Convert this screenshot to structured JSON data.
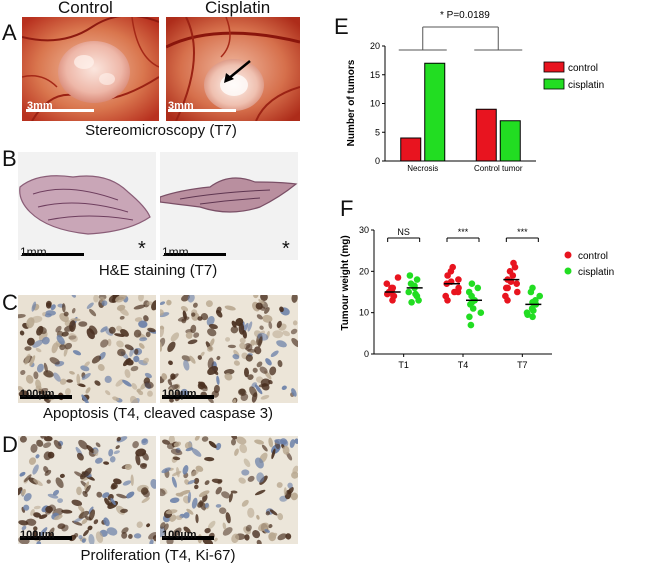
{
  "panels": {
    "A": {
      "label": "A",
      "col_left": "Control",
      "col_right": "Cisplatin",
      "scale_left": "3mm",
      "scale_right": "3mm",
      "caption": "Stereomicroscopy (T7)"
    },
    "B": {
      "label": "B",
      "scale_left": "1mm",
      "scale_right": "1mm",
      "star_left": "*",
      "star_right": "*",
      "caption": "H&E staining (T7)"
    },
    "C": {
      "label": "C",
      "scale_left": "100µm",
      "scale_right": "100µm",
      "caption": "Apoptosis (T4, cleaved caspase 3)"
    },
    "D": {
      "label": "D",
      "scale_left": "100µm",
      "scale_right": "100µm",
      "caption": "Proliferation (T4, Ki-67)"
    },
    "E": {
      "label": "E"
    },
    "F": {
      "label": "F"
    }
  },
  "colors": {
    "control": "#e8141f",
    "cisplatin": "#22dd22",
    "egg_bg": "#c0301c",
    "tissue": "#b98f9f",
    "stain_bg": "#ece6db",
    "nucleus_brown": "#4a3020",
    "nucleus_blue": "#6a7fa8"
  },
  "chart_data": [
    {
      "type": "bar",
      "title": "",
      "significance": "* P=0.0189",
      "ylabel": "Number of tumors",
      "xlabel": "",
      "ylim": [
        0,
        20
      ],
      "yticks": [
        0,
        5,
        10,
        15,
        20
      ],
      "categories": [
        "Necrosis",
        "Control tumor"
      ],
      "series": [
        {
          "name": "control",
          "values": [
            4,
            9
          ]
        },
        {
          "name": "cisplatin",
          "values": [
            17,
            7
          ]
        }
      ],
      "legend_position": "right",
      "grid": false
    },
    {
      "type": "scatter",
      "title": "",
      "ylabel": "Tumour weight (mg)",
      "xlabel": "",
      "ylim": [
        0,
        30
      ],
      "yticks": [
        0,
        10,
        20,
        30
      ],
      "categories": [
        "T1",
        "T4",
        "T7"
      ],
      "significance": [
        "NS",
        "***",
        "***"
      ],
      "legend_position": "right",
      "grid": false,
      "series": [
        {
          "name": "control",
          "means": [
            15,
            17,
            18
          ],
          "values": [
            [
              13,
              14,
              14.5,
              15,
              15.5,
              16,
              17,
              18.5,
              14,
              16
            ],
            [
              13,
              14,
              15,
              16,
              17,
              17.5,
              18,
              19,
              20,
              21,
              15
            ],
            [
              14,
              15,
              16,
              17,
              17.5,
              18,
              19,
              20,
              21,
              22,
              16,
              13
            ]
          ]
        },
        {
          "name": "cisplatin",
          "means": [
            16,
            13,
            12
          ],
          "values": [
            [
              12.5,
              13,
              14,
              15,
              16,
              17,
              18,
              19,
              14.5,
              16.5
            ],
            [
              7,
              9,
              10,
              11,
              12,
              13,
              14,
              15,
              16,
              17,
              12.5
            ],
            [
              9,
              9.5,
              10,
              11,
              12,
              13,
              14,
              15,
              16,
              10.5,
              12.5
            ]
          ]
        }
      ]
    }
  ]
}
